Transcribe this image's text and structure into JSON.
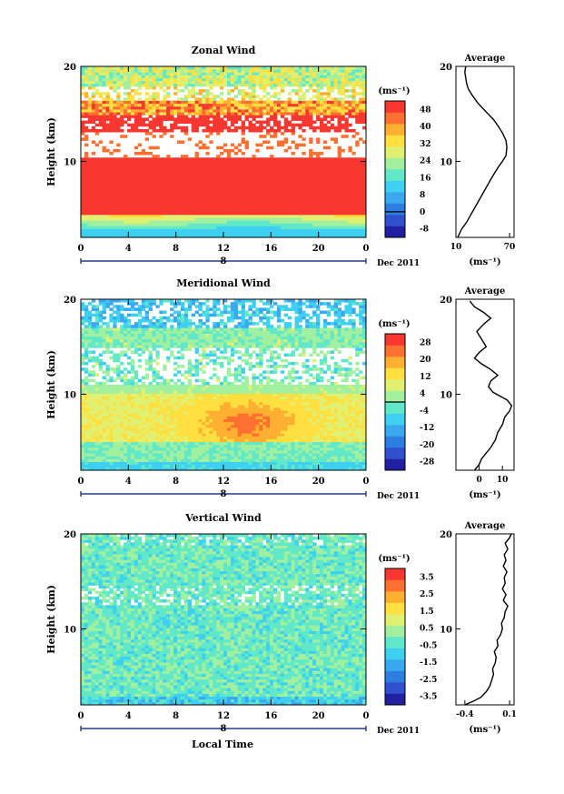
{
  "figure": {
    "bottom_xlabel": "Local Time",
    "unit_label": "(ms⁻¹)"
  },
  "colors": {
    "palette": [
      "#2020a0",
      "#3050d0",
      "#2c7fe0",
      "#3aa8f0",
      "#3ed0f0",
      "#60e8c8",
      "#a0f0a0",
      "#e0f070",
      "#ffe040",
      "#ffb030",
      "#ff7030",
      "#f83830"
    ]
  },
  "chart_data": [
    {
      "type": "heatmap",
      "title": "Zonal Wind",
      "ylabel": "Height (km)",
      "ylim": [
        2,
        20
      ],
      "yticks": [
        10,
        20
      ],
      "x_ticks": [
        "0",
        "4",
        "8",
        "12",
        "16",
        "20",
        "0"
      ],
      "x_range_hours": [
        0,
        24
      ],
      "date_marker": "8",
      "date_label": "Dec 2011",
      "colorbar": {
        "unit": "(ms⁻¹)",
        "ticks": [
          "48",
          "40",
          "32",
          "24",
          "16",
          "8",
          "0",
          "-8"
        ],
        "range": [
          -12,
          52
        ],
        "zero_line": 0
      },
      "profile": {
        "title": "Average",
        "xlim": [
          10,
          75
        ],
        "x_ticks": [
          "10",
          "70"
        ],
        "yticks": [
          10,
          20
        ],
        "xlabel": "(ms⁻¹)",
        "points": [
          [
            12,
            2
          ],
          [
            16,
            2.8
          ],
          [
            22,
            3.6
          ],
          [
            28,
            4.6
          ],
          [
            34,
            5.6
          ],
          [
            40,
            6.6
          ],
          [
            46,
            7.6
          ],
          [
            52,
            8.6
          ],
          [
            58,
            9.5
          ],
          [
            62,
            10
          ],
          [
            66,
            10.6
          ],
          [
            67,
            11.5
          ],
          [
            66,
            12.2
          ],
          [
            62,
            13
          ],
          [
            58,
            13.6
          ],
          [
            52,
            14.4
          ],
          [
            46,
            15
          ],
          [
            40,
            15.6
          ],
          [
            34,
            16.2
          ],
          [
            28,
            17
          ],
          [
            24,
            17.6
          ],
          [
            22,
            18.2
          ],
          [
            21,
            18.8
          ],
          [
            20,
            19.4
          ],
          [
            21,
            20
          ]
        ]
      }
    },
    {
      "type": "heatmap",
      "title": "Meridional Wind",
      "ylabel": "Height (km)",
      "ylim": [
        2,
        20
      ],
      "yticks": [
        10,
        20
      ],
      "x_ticks": [
        "0",
        "4",
        "8",
        "12",
        "16",
        "20",
        "0"
      ],
      "x_range_hours": [
        0,
        24
      ],
      "date_marker": "8",
      "date_label": "Dec 2011",
      "colorbar": {
        "unit": "(ms⁻¹)",
        "ticks": [
          "28",
          "20",
          "12",
          "4",
          "-4",
          "-12",
          "-20",
          "-28"
        ],
        "range": [
          -32,
          32
        ],
        "zero_line": 0
      },
      "profile": {
        "title": "Average",
        "xlim": [
          -10,
          15
        ],
        "x_ticks": [
          "0",
          "10"
        ],
        "yticks": [
          10,
          20
        ],
        "xlabel": "(ms⁻¹)",
        "points": [
          [
            -2,
            2
          ],
          [
            0,
            2.6
          ],
          [
            1,
            3.2
          ],
          [
            3,
            3.8
          ],
          [
            5,
            4.4
          ],
          [
            7,
            5.2
          ],
          [
            8,
            6
          ],
          [
            10,
            6.8
          ],
          [
            11,
            7.6
          ],
          [
            13,
            8.2
          ],
          [
            14,
            8.8
          ],
          [
            12,
            9.4
          ],
          [
            9,
            9.8
          ],
          [
            6,
            10.2
          ],
          [
            4,
            10.8
          ],
          [
            5,
            11.4
          ],
          [
            8,
            12
          ],
          [
            5,
            12.6
          ],
          [
            1,
            13.2
          ],
          [
            -2,
            13.8
          ],
          [
            0,
            14.4
          ],
          [
            3,
            15
          ],
          [
            1,
            15.8
          ],
          [
            -1,
            16.6
          ],
          [
            2,
            17.4
          ],
          [
            5,
            18
          ],
          [
            2,
            18.6
          ],
          [
            -2,
            19.2
          ],
          [
            -4,
            19.8
          ]
        ]
      }
    },
    {
      "type": "heatmap",
      "title": "Vertical Wind",
      "ylabel": "Height (km)",
      "ylim": [
        2,
        20
      ],
      "yticks": [
        10,
        20
      ],
      "x_ticks": [
        "0",
        "4",
        "8",
        "12",
        "16",
        "20",
        "0"
      ],
      "x_range_hours": [
        0,
        24
      ],
      "date_marker": "8",
      "date_label": "Dec 2011",
      "colorbar": {
        "unit": "(ms⁻¹)",
        "ticks": [
          "3.5",
          "2.5",
          "1.5",
          "0.5",
          "-0.5",
          "-1.5",
          "-2.5",
          "-3.5"
        ],
        "range": [
          -4,
          4
        ],
        "zero_line": null
      },
      "profile": {
        "title": "Average",
        "xlim": [
          -0.5,
          0.15
        ],
        "x_ticks": [
          "-0.4",
          "0.1"
        ],
        "yticks": [
          10,
          20
        ],
        "xlabel": "(ms⁻¹)",
        "points": [
          [
            -0.4,
            2
          ],
          [
            -0.3,
            2.4
          ],
          [
            -0.22,
            2.8
          ],
          [
            -0.16,
            3.4
          ],
          [
            -0.12,
            4
          ],
          [
            -0.1,
            4.6
          ],
          [
            -0.08,
            5.2
          ],
          [
            -0.09,
            5.8
          ],
          [
            -0.06,
            6.4
          ],
          [
            -0.05,
            7
          ],
          [
            -0.07,
            7.6
          ],
          [
            -0.03,
            8.2
          ],
          [
            -0.04,
            8.8
          ],
          [
            0,
            9.4
          ],
          [
            0.02,
            10
          ],
          [
            0.01,
            10.6
          ],
          [
            0.04,
            11.2
          ],
          [
            0.05,
            11.8
          ],
          [
            0.08,
            12.4
          ],
          [
            0.03,
            13
          ],
          [
            0.06,
            13.6
          ],
          [
            0.02,
            14.2
          ],
          [
            0.05,
            14.8
          ],
          [
            0.04,
            15.4
          ],
          [
            0.07,
            16
          ],
          [
            0.03,
            16.6
          ],
          [
            0.06,
            17.2
          ],
          [
            0.04,
            17.8
          ],
          [
            0.08,
            18.4
          ],
          [
            0.05,
            19
          ],
          [
            0.1,
            19.6
          ],
          [
            0.12,
            20
          ]
        ]
      }
    }
  ]
}
